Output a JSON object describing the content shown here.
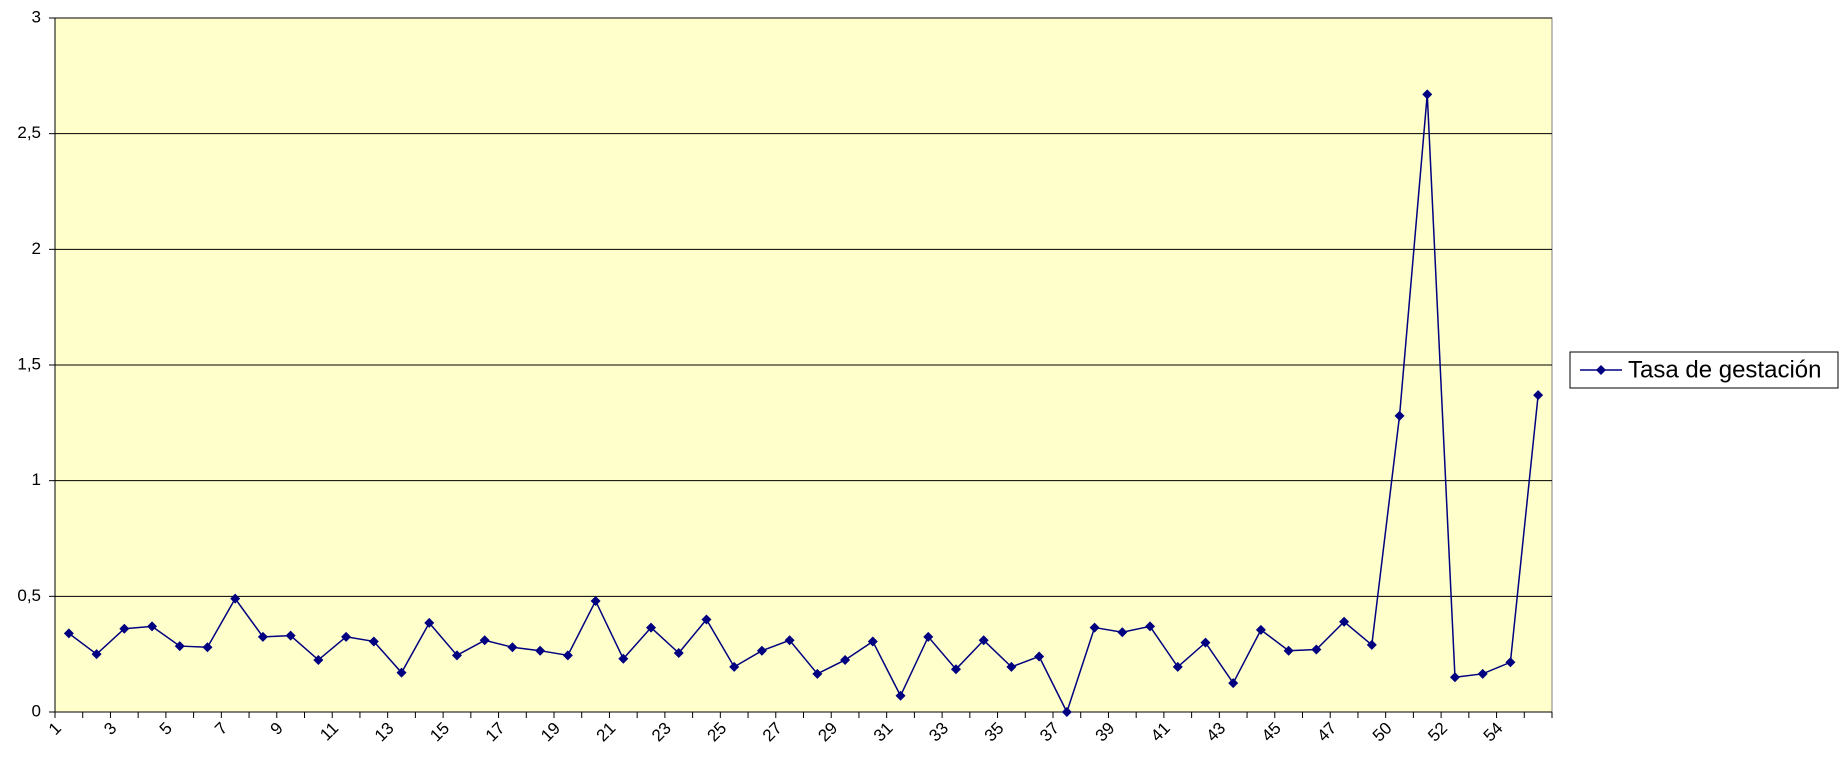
{
  "chart_data": {
    "type": "line",
    "categories": [
      "1",
      null,
      "3",
      null,
      "5",
      null,
      "7",
      null,
      "9",
      null,
      "11",
      null,
      "13",
      null,
      "15",
      null,
      "17",
      null,
      "19",
      null,
      "21",
      null,
      "23",
      null,
      "25",
      null,
      "27",
      null,
      "29",
      null,
      "31",
      null,
      "33",
      null,
      "35",
      null,
      "37",
      null,
      "39",
      null,
      "41",
      null,
      "43",
      null,
      "45",
      null,
      "47",
      null,
      "50",
      null,
      "52",
      null,
      "54",
      null
    ],
    "series": [
      {
        "name": "Tasa de gestación",
        "color": "#000080",
        "values": [
          0.34,
          0.25,
          0.36,
          0.37,
          0.285,
          0.28,
          0.49,
          0.325,
          0.33,
          0.225,
          0.325,
          0.305,
          0.17,
          0.385,
          0.245,
          0.31,
          0.28,
          0.265,
          0.245,
          0.48,
          0.23,
          0.365,
          0.255,
          0.4,
          0.195,
          0.265,
          0.31,
          0.165,
          0.225,
          0.305,
          0.07,
          0.325,
          0.185,
          0.31,
          0.195,
          0.24,
          0.0,
          0.365,
          0.345,
          0.37,
          0.195,
          0.3,
          0.125,
          0.355,
          0.265,
          0.27,
          0.39,
          0.29,
          1.28,
          2.67,
          0.15,
          0.165,
          0.215,
          1.37
        ]
      }
    ],
    "ylim": [
      0,
      3
    ],
    "yticks": [
      0,
      {
        "value": 0.5,
        "label": "0,5"
      },
      1,
      {
        "value": 1.5,
        "label": "1,5"
      },
      2,
      {
        "value": 2.5,
        "label": "2,5"
      },
      3
    ],
    "grid": true,
    "legend": "right",
    "background": "#ffffcc"
  }
}
